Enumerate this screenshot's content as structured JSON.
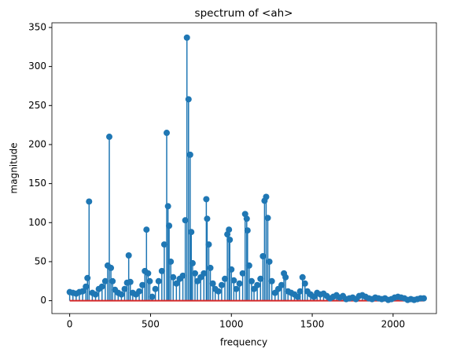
{
  "chart_data": {
    "type": "stem",
    "title": "spectrum of <ah>",
    "x_label": "frequency",
    "y_label": "magnitude",
    "x": [
      0,
      20,
      40,
      60,
      80,
      100,
      110,
      120,
      140,
      160,
      180,
      200,
      220,
      235,
      245,
      255,
      265,
      280,
      300,
      320,
      340,
      355,
      365,
      375,
      390,
      410,
      430,
      450,
      465,
      475,
      485,
      495,
      510,
      530,
      550,
      570,
      585,
      600,
      608,
      615,
      625,
      640,
      660,
      680,
      700,
      715,
      725,
      735,
      745,
      752,
      760,
      775,
      790,
      810,
      830,
      845,
      850,
      860,
      870,
      885,
      900,
      920,
      940,
      960,
      975,
      985,
      990,
      1000,
      1015,
      1030,
      1050,
      1070,
      1085,
      1095,
      1100,
      1110,
      1125,
      1140,
      1160,
      1180,
      1195,
      1205,
      1215,
      1225,
      1235,
      1250,
      1270,
      1290,
      1310,
      1325,
      1335,
      1350,
      1370,
      1390,
      1410,
      1425,
      1440,
      1455,
      1470,
      1490,
      1510,
      1530,
      1550,
      1570,
      1590,
      1610,
      1630,
      1650,
      1670,
      1690,
      1710,
      1730,
      1750,
      1770,
      1790,
      1810,
      1830,
      1850,
      1870,
      1890,
      1910,
      1930,
      1950,
      1970,
      1990,
      2010,
      2030,
      2050,
      2070,
      2090,
      2110,
      2130,
      2150,
      2170,
      2190
    ],
    "values": [
      11,
      10,
      9,
      11,
      12,
      18,
      29,
      127,
      10,
      8,
      15,
      18,
      25,
      45,
      210,
      42,
      25,
      14,
      10,
      8,
      15,
      23,
      58,
      24,
      10,
      8,
      12,
      20,
      38,
      91,
      35,
      25,
      5,
      15,
      25,
      38,
      72,
      215,
      121,
      96,
      50,
      30,
      22,
      28,
      32,
      103,
      337,
      258,
      187,
      88,
      48,
      35,
      25,
      30,
      35,
      130,
      105,
      72,
      42,
      22,
      15,
      12,
      20,
      28,
      85,
      91,
      78,
      40,
      26,
      15,
      22,
      35,
      111,
      105,
      90,
      45,
      25,
      15,
      20,
      28,
      57,
      128,
      133,
      106,
      50,
      25,
      10,
      15,
      20,
      35,
      30,
      12,
      10,
      8,
      5,
      12,
      30,
      22,
      12,
      8,
      5,
      10,
      8,
      9,
      6,
      3,
      5,
      7,
      4,
      6,
      2,
      3,
      4,
      2,
      6,
      7,
      5,
      3,
      2,
      4,
      3,
      2,
      3,
      1,
      2,
      4,
      5,
      4,
      3,
      1,
      2,
      1,
      2,
      3,
      3
    ],
    "color": "#1f77b4",
    "baseline_color": "#d62728",
    "xlim": [
      -110,
      2268
    ],
    "xticks": [
      0,
      500,
      1000,
      1500,
      2000
    ],
    "ylim": [
      -16.5,
      356
    ],
    "yticks": [
      0,
      50,
      100,
      150,
      200,
      250,
      300,
      350
    ],
    "grid": false
  }
}
